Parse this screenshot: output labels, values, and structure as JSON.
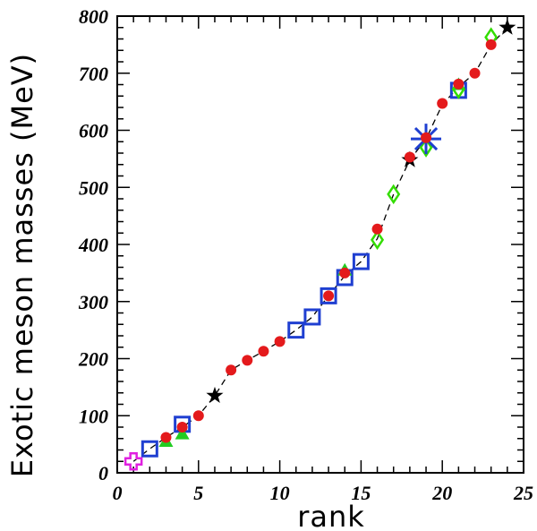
{
  "chart_data": {
    "type": "scatter",
    "xlabel": "rank",
    "ylabel": "Exotic meson masses (MeV)",
    "xlim": [
      0,
      25
    ],
    "ylim": [
      0,
      800
    ],
    "x_ticks": [
      0,
      5,
      10,
      15,
      20,
      25
    ],
    "y_ticks": [
      0,
      100,
      200,
      300,
      400,
      500,
      600,
      700,
      800
    ],
    "grid": false,
    "curve": {
      "style": "dashed",
      "color": "#000000",
      "points": [
        [
          1,
          20
        ],
        [
          2,
          42
        ],
        [
          3,
          62
        ],
        [
          4,
          80
        ],
        [
          5,
          100
        ],
        [
          6,
          135
        ],
        [
          7,
          180
        ],
        [
          8,
          197
        ],
        [
          9,
          213
        ],
        [
          10,
          230
        ],
        [
          11,
          250
        ],
        [
          12,
          273
        ],
        [
          13,
          310
        ],
        [
          14,
          345
        ],
        [
          15,
          370
        ],
        [
          16,
          410
        ],
        [
          17,
          488
        ],
        [
          18,
          548
        ],
        [
          19,
          585
        ],
        [
          20,
          645
        ],
        [
          21,
          676
        ],
        [
          22,
          700
        ],
        [
          23,
          750
        ],
        [
          24,
          780
        ]
      ]
    },
    "series": [
      {
        "marker": "circle",
        "color": "#e41a1c",
        "points": [
          [
            3,
            62
          ],
          [
            4,
            80
          ],
          [
            5,
            100
          ],
          [
            7,
            180
          ],
          [
            8,
            197
          ],
          [
            9,
            213
          ],
          [
            10,
            230
          ],
          [
            13,
            310
          ],
          [
            14,
            350
          ],
          [
            16,
            427
          ],
          [
            18,
            553
          ],
          [
            19,
            587
          ],
          [
            20,
            647
          ],
          [
            21,
            681
          ],
          [
            22,
            700
          ],
          [
            23,
            750
          ]
        ]
      },
      {
        "marker": "square",
        "color": "#1f3fd1",
        "points": [
          [
            2,
            42
          ],
          [
            4,
            85
          ],
          [
            11,
            250
          ],
          [
            12,
            273
          ],
          [
            13,
            310
          ],
          [
            14,
            342
          ],
          [
            15,
            370
          ],
          [
            21,
            670
          ]
        ]
      },
      {
        "marker": "triangle",
        "color": "#22cc22",
        "points": [
          [
            3,
            55
          ],
          [
            4,
            68
          ],
          [
            14,
            355
          ],
          [
            21,
            680
          ]
        ]
      },
      {
        "marker": "diamond",
        "color": "#33dd00",
        "points": [
          [
            16,
            408
          ],
          [
            17,
            488
          ],
          [
            19,
            570
          ],
          [
            21,
            672
          ],
          [
            23,
            763
          ]
        ]
      },
      {
        "marker": "star",
        "color": "#000000",
        "points": [
          [
            6,
            135
          ],
          [
            18,
            548
          ],
          [
            24,
            780
          ]
        ]
      },
      {
        "marker": "cross",
        "color": "#e020e0",
        "points": [
          [
            1,
            20
          ]
        ]
      },
      {
        "marker": "asterisk",
        "color": "#1f3fd1",
        "points": [
          [
            19,
            585
          ]
        ]
      }
    ]
  }
}
